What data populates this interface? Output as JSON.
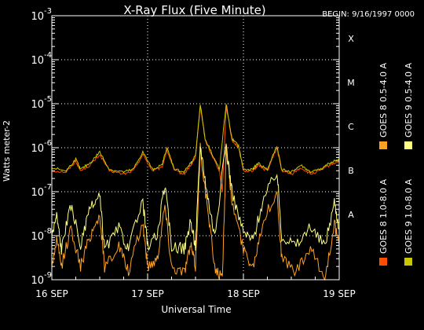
{
  "chart_data": {
    "type": "line",
    "title": "X-Ray Flux (Five Minute)",
    "begin_label": "BEGIN: 9/16/1997 0000",
    "xlabel": "Universal Time",
    "ylabel": "Watts meter-2",
    "log_scale": true,
    "x_ticks": [
      "16 SEP",
      "17 SEP",
      "18 SEP",
      "19 SEP"
    ],
    "y_ticks": [
      {
        "base": "10",
        "exp": "-9",
        "value": 1e-09
      },
      {
        "base": "10",
        "exp": "-8",
        "value": 1e-08
      },
      {
        "base": "10",
        "exp": "-7",
        "value": 1e-07
      },
      {
        "base": "10",
        "exp": "-6",
        "value": 1e-06
      },
      {
        "base": "10",
        "exp": "-5",
        "value": 1e-05
      },
      {
        "base": "10",
        "exp": "-4",
        "value": 0.0001
      },
      {
        "base": "10",
        "exp": "-3",
        "value": 0.001
      }
    ],
    "ylim": [
      1e-09,
      0.001
    ],
    "xlim_days": [
      0,
      3
    ],
    "class_labels": [
      {
        "label": "X",
        "value": 0.0001
      },
      {
        "label": "M",
        "value": 1e-05
      },
      {
        "label": "C",
        "value": 1e-06
      },
      {
        "label": "B",
        "value": 1e-07
      },
      {
        "label": "A",
        "value": 1e-08
      }
    ],
    "series": [
      {
        "name": "GOES 8 1.0-8.0 A",
        "color": "#ff4d00",
        "points": [
          [
            0,
            3e-07
          ],
          [
            0.15,
            2.8e-07
          ],
          [
            0.25,
            5e-07
          ],
          [
            0.3,
            3e-07
          ],
          [
            0.4,
            4e-07
          ],
          [
            0.5,
            7e-07
          ],
          [
            0.6,
            3e-07
          ],
          [
            0.75,
            2.5e-07
          ],
          [
            0.85,
            3e-07
          ],
          [
            0.95,
            7e-07
          ],
          [
            1.05,
            3e-07
          ],
          [
            1.15,
            3.5e-07
          ],
          [
            1.2,
            9e-07
          ],
          [
            1.28,
            3e-07
          ],
          [
            1.38,
            2.5e-07
          ],
          [
            1.45,
            4e-07
          ],
          [
            1.5,
            6e-07
          ],
          [
            1.55,
            9e-06
          ],
          [
            1.6,
            1.5e-06
          ],
          [
            1.7,
            5e-07
          ],
          [
            1.75,
            3e-07
          ],
          [
            1.78,
            1e-07
          ],
          [
            1.82,
            9e-06
          ],
          [
            1.88,
            1.5e-06
          ],
          [
            1.95,
            1e-06
          ],
          [
            2.0,
            3e-07
          ],
          [
            2.1,
            3e-07
          ],
          [
            2.15,
            4e-07
          ],
          [
            2.25,
            3e-07
          ],
          [
            2.35,
            1e-06
          ],
          [
            2.4,
            3e-07
          ],
          [
            2.5,
            2.5e-07
          ],
          [
            2.6,
            3.5e-07
          ],
          [
            2.7,
            2.5e-07
          ],
          [
            2.8,
            3e-07
          ],
          [
            2.9,
            4e-07
          ],
          [
            3.0,
            5e-07
          ]
        ]
      },
      {
        "name": "GOES 8 0.5-4.0 A",
        "color": "#ffa020",
        "points": [
          [
            0,
            2e-09
          ],
          [
            0.05,
            8e-09
          ],
          [
            0.1,
            2e-09
          ],
          [
            0.2,
            1.5e-08
          ],
          [
            0.3,
            2e-09
          ],
          [
            0.4,
            1e-08
          ],
          [
            0.5,
            3e-08
          ],
          [
            0.55,
            2e-09
          ],
          [
            0.7,
            6e-09
          ],
          [
            0.8,
            1.5e-09
          ],
          [
            0.95,
            2e-08
          ],
          [
            1.0,
            2e-09
          ],
          [
            1.1,
            3e-09
          ],
          [
            1.18,
            5e-08
          ],
          [
            1.25,
            2e-09
          ],
          [
            1.38,
            1.5e-09
          ],
          [
            1.45,
            6e-09
          ],
          [
            1.5,
            2e-09
          ],
          [
            1.55,
            1e-06
          ],
          [
            1.62,
            5e-08
          ],
          [
            1.7,
            2e-09
          ],
          [
            1.78,
            1e-09
          ],
          [
            1.82,
            1e-06
          ],
          [
            1.88,
            6e-08
          ],
          [
            2.0,
            5e-09
          ],
          [
            2.1,
            2e-09
          ],
          [
            2.2,
            2e-08
          ],
          [
            2.35,
            1e-07
          ],
          [
            2.4,
            3e-09
          ],
          [
            2.55,
            1.5e-09
          ],
          [
            2.7,
            5e-09
          ],
          [
            2.85,
            1e-09
          ],
          [
            2.95,
            2e-08
          ],
          [
            3.0,
            5e-09
          ]
        ]
      },
      {
        "name": "GOES 9 1.0-8.0 A",
        "color": "#c8c800",
        "points": [
          [
            0,
            3.5e-07
          ],
          [
            0.15,
            3e-07
          ],
          [
            0.25,
            5.5e-07
          ],
          [
            0.3,
            3.2e-07
          ],
          [
            0.4,
            4.5e-07
          ],
          [
            0.5,
            8e-07
          ],
          [
            0.6,
            3.2e-07
          ],
          [
            0.75,
            2.8e-07
          ],
          [
            0.85,
            3.2e-07
          ],
          [
            0.95,
            8e-07
          ],
          [
            1.05,
            3.2e-07
          ],
          [
            1.15,
            4e-07
          ],
          [
            1.2,
            1e-06
          ],
          [
            1.28,
            3.3e-07
          ],
          [
            1.38,
            2.8e-07
          ],
          [
            1.45,
            4.5e-07
          ],
          [
            1.5,
            6.5e-07
          ],
          [
            1.55,
            1e-05
          ],
          [
            1.6,
            1.6e-06
          ],
          [
            1.7,
            5.5e-07
          ],
          [
            1.75,
            3.2e-07
          ],
          [
            1.82,
            1e-05
          ],
          [
            1.88,
            1.6e-06
          ],
          [
            1.95,
            1.1e-06
          ],
          [
            2.0,
            3.2e-07
          ],
          [
            2.1,
            3.2e-07
          ],
          [
            2.15,
            4.5e-07
          ],
          [
            2.25,
            3.2e-07
          ],
          [
            2.35,
            1.1e-06
          ],
          [
            2.4,
            3.2e-07
          ],
          [
            2.5,
            2.8e-07
          ],
          [
            2.6,
            4e-07
          ],
          [
            2.7,
            2.8e-07
          ],
          [
            2.8,
            3.2e-07
          ],
          [
            2.9,
            4.5e-07
          ],
          [
            3.0,
            5.5e-07
          ]
        ]
      },
      {
        "name": "GOES 9 0.5-4.0 A",
        "color": "#ffff80",
        "points": [
          [
            0,
            1e-08
          ],
          [
            0.05,
            3e-08
          ],
          [
            0.1,
            5e-09
          ],
          [
            0.2,
            5e-08
          ],
          [
            0.3,
            6e-09
          ],
          [
            0.4,
            4e-08
          ],
          [
            0.5,
            8e-08
          ],
          [
            0.55,
            5e-09
          ],
          [
            0.7,
            1.5e-08
          ],
          [
            0.8,
            5e-09
          ],
          [
            0.95,
            6e-08
          ],
          [
            1.0,
            6e-09
          ],
          [
            1.1,
            1e-08
          ],
          [
            1.18,
            1.5e-07
          ],
          [
            1.25,
            6e-09
          ],
          [
            1.38,
            5e-09
          ],
          [
            1.45,
            2e-08
          ],
          [
            1.5,
            6e-09
          ],
          [
            1.55,
            1.2e-06
          ],
          [
            1.62,
            1e-07
          ],
          [
            1.7,
            1e-08
          ],
          [
            1.82,
            1.2e-06
          ],
          [
            1.88,
            1e-07
          ],
          [
            2.0,
            1.2e-08
          ],
          [
            2.1,
            8e-09
          ],
          [
            2.2,
            6e-08
          ],
          [
            2.35,
            3e-07
          ],
          [
            2.4,
            1e-08
          ],
          [
            2.55,
            6e-09
          ],
          [
            2.7,
            1.5e-08
          ],
          [
            2.85,
            6e-09
          ],
          [
            2.95,
            6e-08
          ],
          [
            3.0,
            1.5e-08
          ]
        ]
      }
    ],
    "legend_placement": "right",
    "grid": "dotted"
  }
}
